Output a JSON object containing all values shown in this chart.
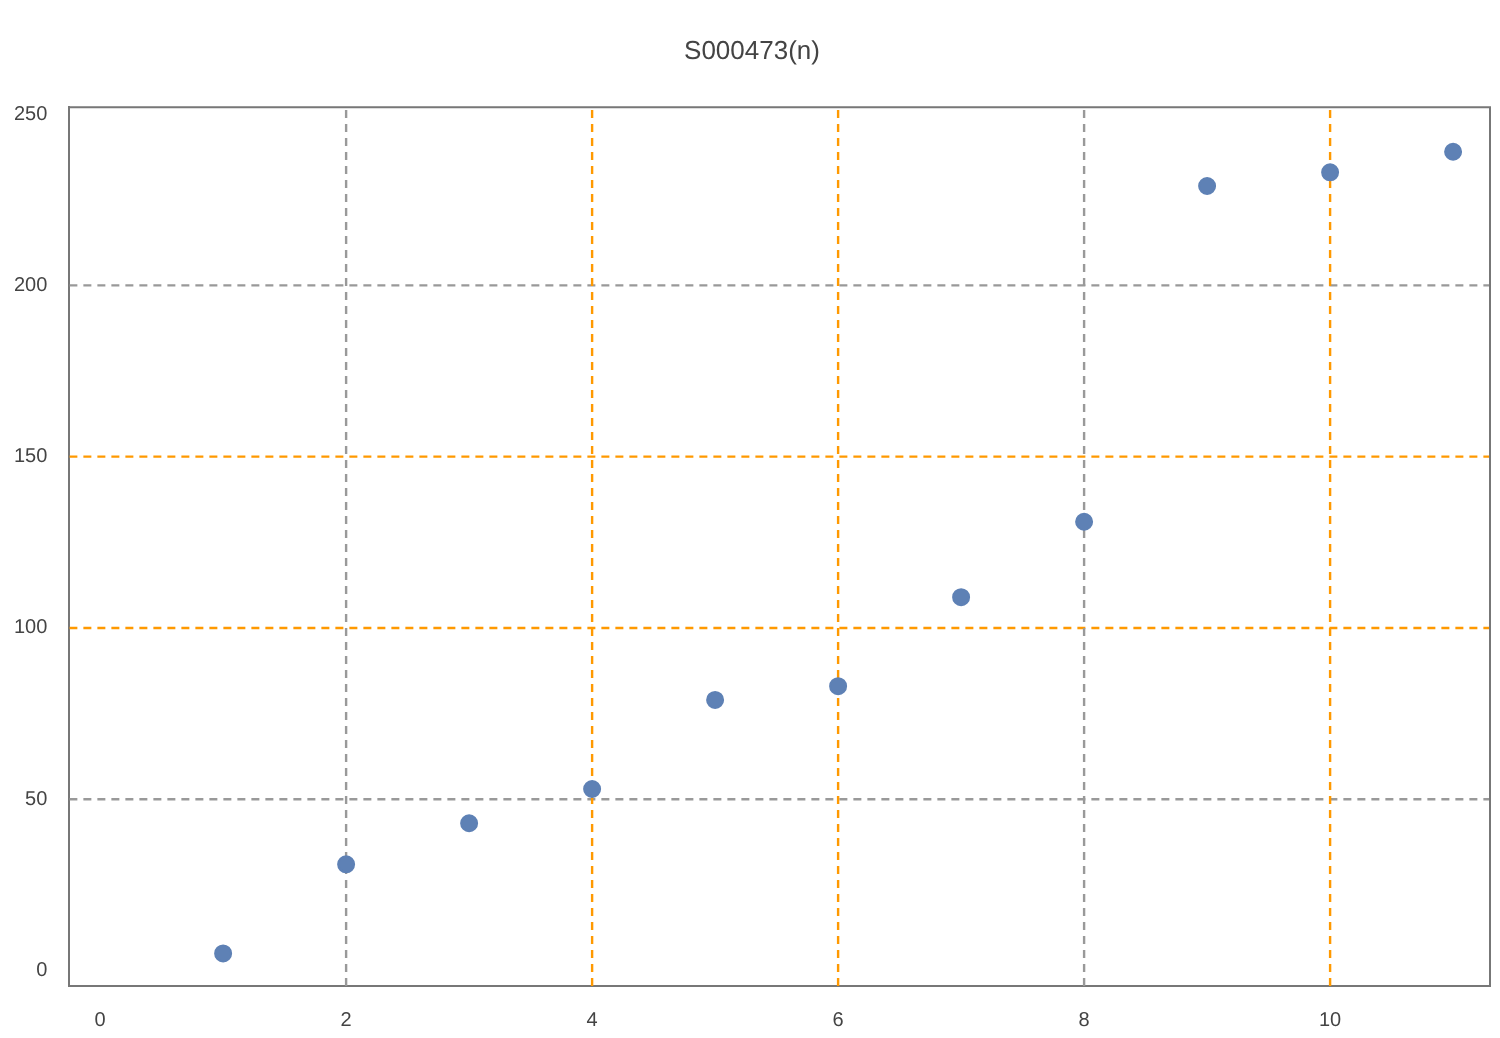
{
  "chart_data": {
    "type": "scatter",
    "title": "S000473(n)",
    "x": [
      1,
      2,
      3,
      4,
      5,
      6,
      7,
      8,
      9,
      10,
      11
    ],
    "series": [
      {
        "color": "#5e81b5",
        "values": [
          5,
          31,
          43,
          53,
          79,
          83,
          109,
          131,
          229,
          233,
          239
        ]
      }
    ],
    "xlim": [
      -0.25,
      11.3
    ],
    "ylim": [
      -4.5,
      252
    ],
    "xticks": [
      0,
      2,
      4,
      6,
      8,
      10
    ],
    "yticks": [
      0,
      50,
      100,
      150,
      200,
      250
    ],
    "legend": false,
    "marker": "circle",
    "ref_lines": [
      {
        "axis": "x",
        "value": 2,
        "color": "#999999",
        "line_style": "dashed"
      },
      {
        "axis": "x",
        "value": 4,
        "color": "#ff9900",
        "line_style": "dashed"
      },
      {
        "axis": "x",
        "value": 6,
        "color": "#ff9900",
        "line_style": "dashed"
      },
      {
        "axis": "x",
        "value": 8,
        "color": "#999999",
        "line_style": "dashed"
      },
      {
        "axis": "x",
        "value": 10,
        "color": "#ff9900",
        "line_style": "dashed"
      },
      {
        "axis": "y",
        "value": 50,
        "color": "#999999",
        "line_style": "dashed"
      },
      {
        "axis": "y",
        "value": 100,
        "color": "#ff9900",
        "line_style": "dashed"
      },
      {
        "axis": "y",
        "value": 150,
        "color": "#ff9900",
        "line_style": "dashed"
      },
      {
        "axis": "y",
        "value": 200,
        "color": "#999999",
        "line_style": "dashed"
      }
    ]
  }
}
